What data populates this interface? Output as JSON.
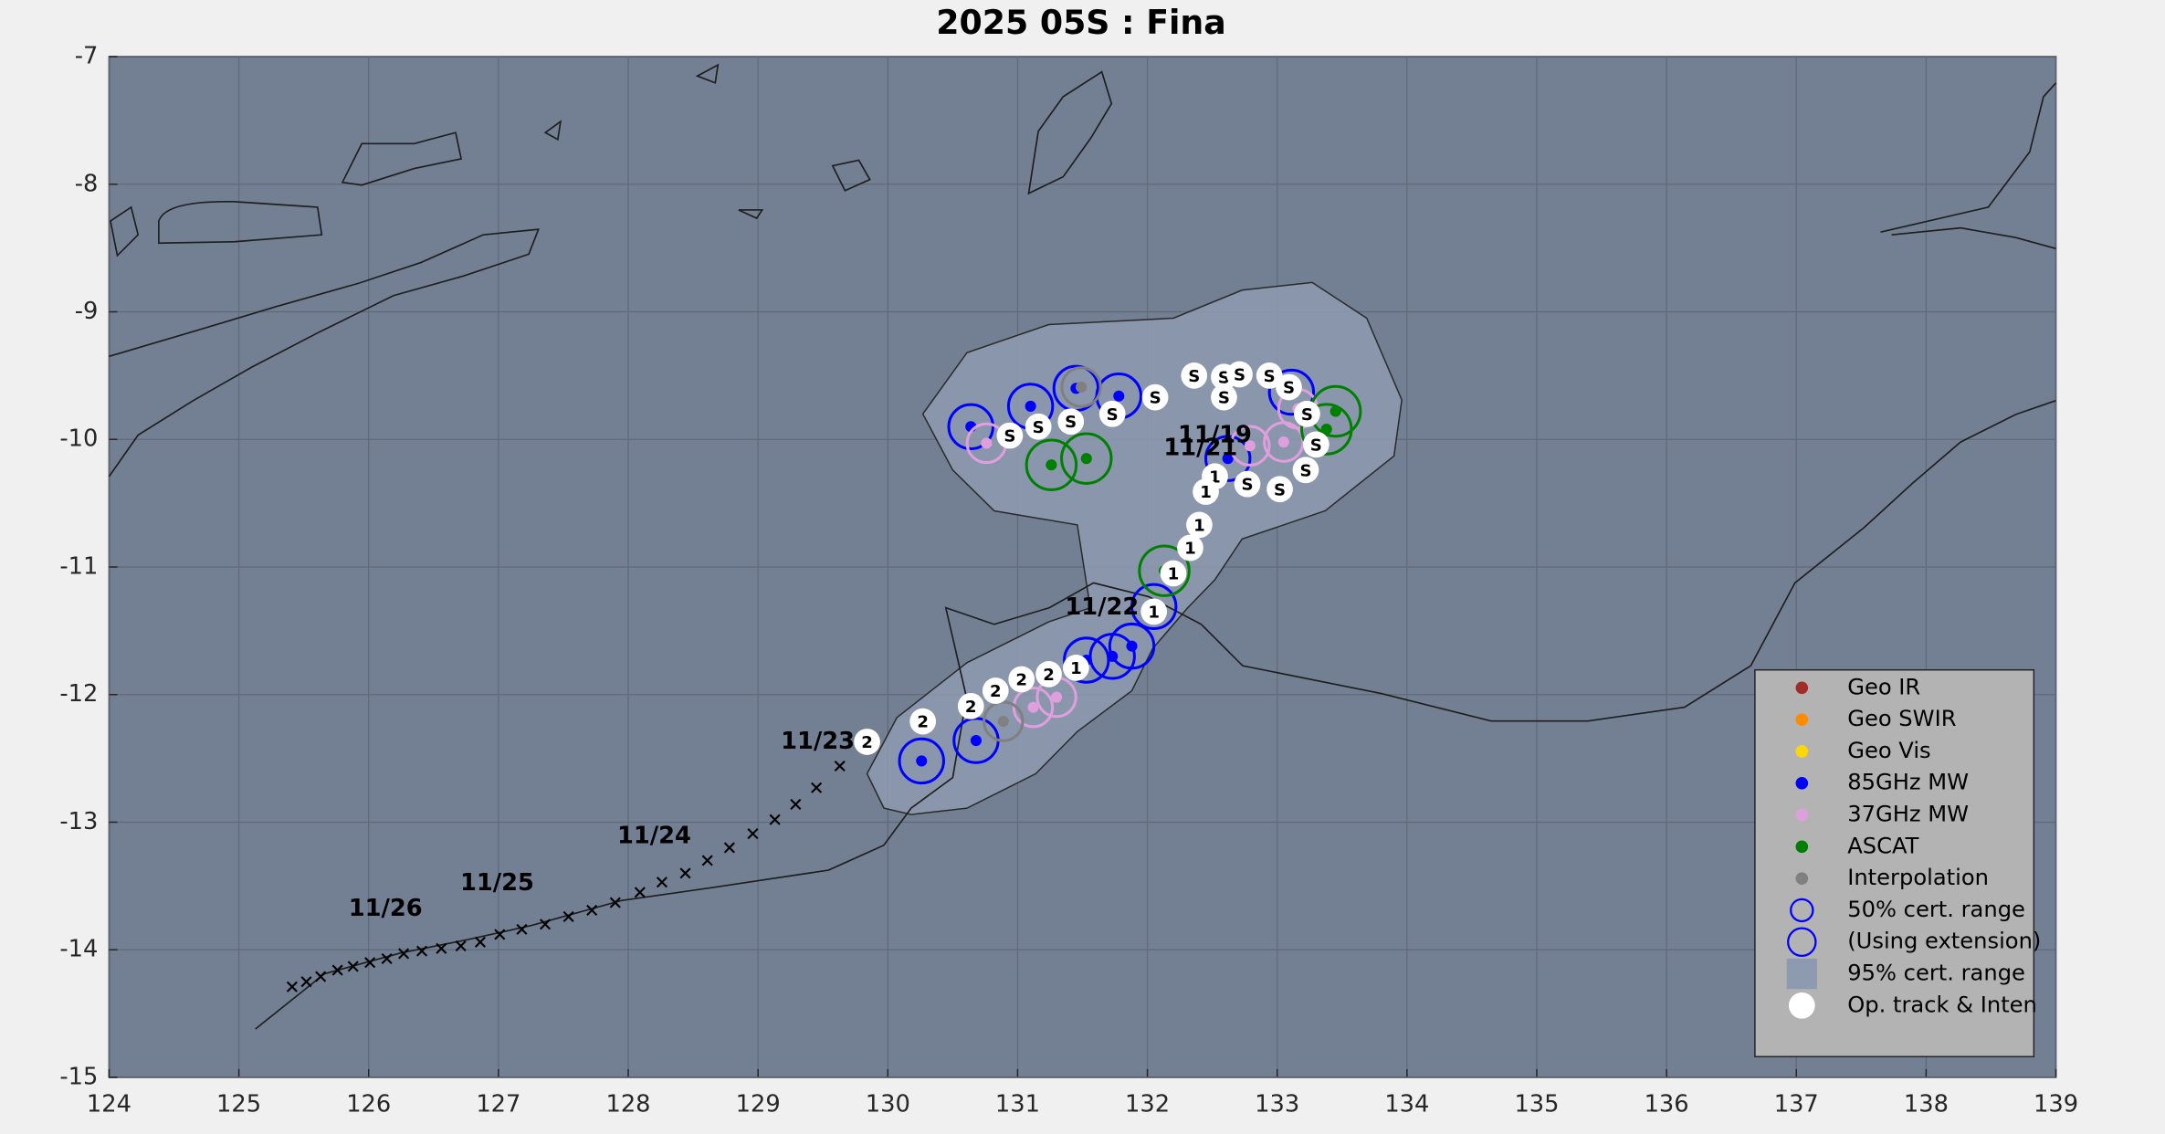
{
  "chart_data": {
    "type": "track",
    "title": "2025  05S :  Fina",
    "xlim": [
      124,
      139
    ],
    "ylim": [
      -15,
      -7
    ],
    "xticks": [
      124,
      125,
      126,
      127,
      128,
      129,
      130,
      131,
      132,
      133,
      134,
      135,
      136,
      137,
      138,
      139
    ],
    "yticks": [
      -7,
      -8,
      -9,
      -10,
      -11,
      -12,
      -13,
      -14,
      -15
    ],
    "grid": true,
    "series": [
      {
        "name": "Geo IR",
        "color": "#a52a2a",
        "x": [],
        "y": []
      },
      {
        "name": "Geo SWIR",
        "color": "#ff8c00",
        "x": [],
        "y": []
      },
      {
        "name": "Geo Vis",
        "color": "#ffd700",
        "x": [],
        "y": []
      },
      {
        "name": "85GHz MW",
        "color": "#0000ff",
        "x": [
          130.64,
          131.1,
          131.78,
          132.62,
          132.05,
          131.73,
          131.53,
          131.88,
          130.68,
          130.26,
          133.11,
          131.45
        ],
        "y": [
          -9.9,
          -9.74,
          -9.66,
          -10.15,
          -11.31,
          -11.7,
          -11.73,
          -11.62,
          -12.36,
          -12.52,
          -9.63,
          -9.6
        ]
      },
      {
        "name": "37GHz MW",
        "color": "#dda0dd",
        "x": [
          130.76,
          132.79,
          131.3,
          131.12,
          133.05,
          133.16
        ],
        "y": [
          -10.03,
          -10.05,
          -12.02,
          -12.1,
          -10.02,
          -9.76
        ]
      },
      {
        "name": "ASCAT",
        "color": "#008000",
        "x": [
          131.26,
          131.53,
          132.13,
          133.45,
          133.38
        ],
        "y": [
          -10.2,
          -10.15,
          -11.03,
          -9.78,
          -9.92
        ]
      },
      {
        "name": "Interpolation",
        "color": "#808080",
        "x": [
          130.89,
          131.49
        ],
        "y": [
          -12.21,
          -9.59
        ]
      }
    ],
    "legend_extra": [
      {
        "name": "50% cert. range",
        "color": "#0000ff"
      },
      {
        "name": "(Using extension)",
        "color": "#0000ff"
      },
      {
        "name": "95% cert. range",
        "color": "#8e9ab0"
      },
      {
        "name": "Op. track & Inten",
        "color": "#ffffff"
      }
    ],
    "cert_area": {
      "color": "#8e9ab0",
      "x": [
        129.97,
        129.84,
        130.07,
        130.61,
        131.24,
        131.56,
        131.46,
        130.82,
        130.5,
        130.27,
        130.61,
        131.24,
        132.2,
        132.73,
        133.27,
        133.69,
        133.96,
        133.9,
        133.37,
        132.73,
        132.52,
        132.31,
        132.04,
        131.88,
        131.46,
        131.14,
        130.61,
        130.18
      ],
      "y": [
        -12.89,
        -12.62,
        -12.18,
        -11.75,
        -11.43,
        -11.32,
        -10.67,
        -10.56,
        -10.24,
        -9.8,
        -9.32,
        -9.1,
        -9.05,
        -8.83,
        -8.77,
        -9.05,
        -9.69,
        -10.13,
        -10.56,
        -10.78,
        -11.1,
        -11.32,
        -11.64,
        -11.97,
        -12.29,
        -12.62,
        -12.89,
        -12.94
      ]
    },
    "track": {
      "x": [
        130.94,
        131.16,
        131.41,
        131.73,
        132.06,
        132.36,
        132.59,
        132.59,
        132.71,
        132.94,
        133.09,
        133.23,
        133.3,
        133.22,
        133.02,
        132.77,
        132.52,
        132.45,
        132.4,
        132.33,
        132.2,
        132.05,
        131.45,
        131.24,
        131.03,
        130.83,
        130.64,
        130.27,
        129.84
      ],
      "y": [
        -9.97,
        -9.9,
        -9.86,
        -9.8,
        -9.67,
        -9.5,
        -9.67,
        -9.51,
        -9.49,
        -9.5,
        -9.59,
        -9.8,
        -10.04,
        -10.24,
        -10.39,
        -10.35,
        -10.29,
        -10.41,
        -10.67,
        -10.85,
        -11.05,
        -11.35,
        -11.79,
        -11.84,
        -11.88,
        -11.97,
        -12.09,
        -12.21,
        -12.37
      ],
      "labels": [
        "S",
        "S",
        "S",
        "S",
        "S",
        "S",
        "S",
        "S",
        "S",
        "S",
        "S",
        "S",
        "S",
        "S",
        "S",
        "S",
        "1",
        "1",
        "1",
        "1",
        "1",
        "1",
        "1",
        "2",
        "2",
        "2",
        "2",
        "2",
        "2"
      ]
    },
    "forecast": {
      "x": [
        129.63,
        129.45,
        129.29,
        129.13,
        128.96,
        128.78,
        128.61,
        128.44,
        128.26,
        128.09,
        127.9,
        127.72,
        127.54,
        127.36,
        127.18,
        127.01,
        126.86,
        126.71,
        126.56,
        126.41,
        126.27,
        126.14,
        126.01,
        125.88,
        125.76,
        125.63,
        125.52,
        125.41
      ],
      "y": [
        -12.56,
        -12.73,
        -12.86,
        -12.98,
        -13.09,
        -13.2,
        -13.3,
        -13.4,
        -13.47,
        -13.55,
        -13.63,
        -13.69,
        -13.74,
        -13.8,
        -13.84,
        -13.88,
        -13.94,
        -13.97,
        -13.99,
        -14.01,
        -14.03,
        -14.07,
        -14.1,
        -14.13,
        -14.16,
        -14.21,
        -14.25,
        -14.29
      ]
    },
    "date_labels": [
      {
        "text": "11/19",
        "x": 132.52,
        "y": -9.97
      },
      {
        "text": "11/21",
        "x": 132.41,
        "y": -10.07
      },
      {
        "text": "11/22",
        "x": 131.65,
        "y": -11.32
      },
      {
        "text": "11/23",
        "x": 129.46,
        "y": -12.37
      },
      {
        "text": "11/24",
        "x": 128.2,
        "y": -13.11
      },
      {
        "text": "11/25",
        "x": 126.99,
        "y": -13.48
      },
      {
        "text": "11/26",
        "x": 126.13,
        "y": -13.68
      }
    ]
  }
}
